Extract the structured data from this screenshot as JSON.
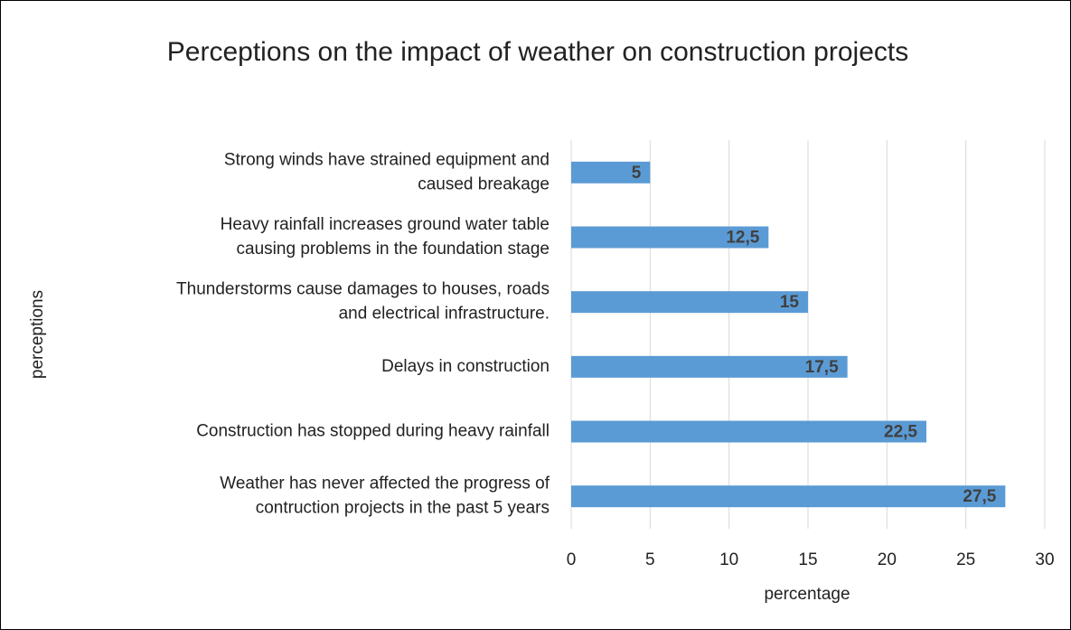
{
  "chart_data": {
    "type": "barh",
    "title": "Perceptions on the impact of weather on construction projects",
    "xlabel": "percentage",
    "ylabel": "perceptions",
    "categories": [
      [
        "Strong winds have strained equipment and",
        "caused breakage"
      ],
      [
        "Heavy rainfall increases ground water table",
        "causing problems in the foundation stage"
      ],
      [
        "Thunderstorms cause damages to houses, roads",
        "and electrical infrastructure."
      ],
      [
        "Delays in construction"
      ],
      [
        "Construction has stopped during heavy rainfall"
      ],
      [
        "Weather has never affected the progress of",
        "contruction projects in the past  5 years"
      ]
    ],
    "values": [
      5,
      12.5,
      15,
      17.5,
      22.5,
      27.5
    ],
    "value_labels": [
      "5",
      "12,5",
      "15",
      "17,5",
      "22,5",
      "27,5"
    ],
    "color": "#5b9bd5",
    "xlim": [
      0,
      30
    ],
    "xticks": [
      0,
      5,
      10,
      15,
      20,
      25,
      30
    ],
    "grid": true
  }
}
